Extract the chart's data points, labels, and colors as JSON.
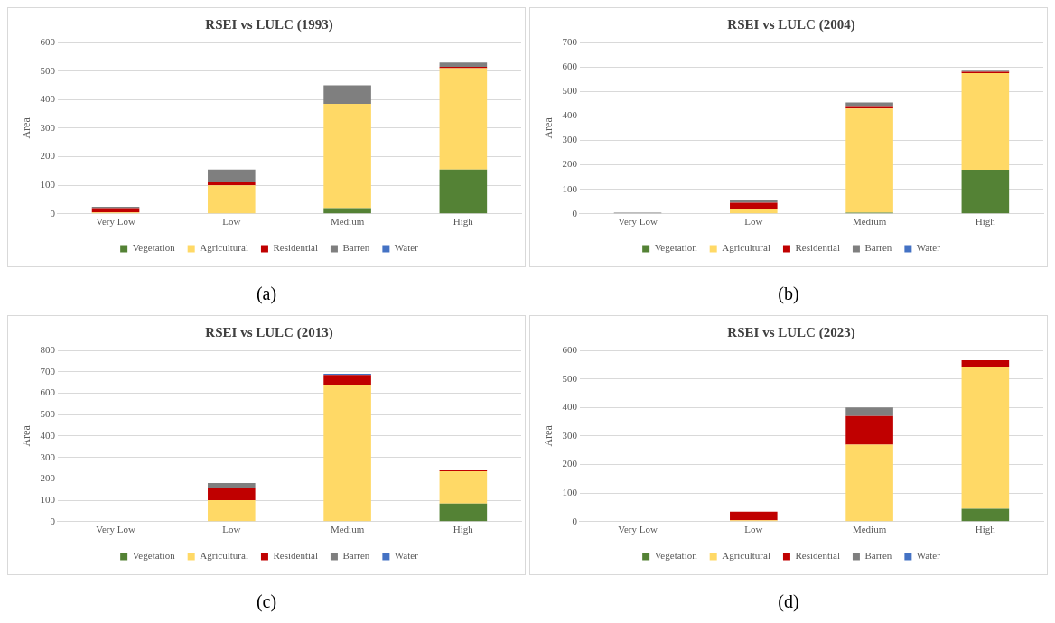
{
  "chart_data": [
    {
      "type": "bar",
      "title": "RSEI vs LULC (1993)",
      "ylabel": "Area",
      "categories": [
        "Very Low",
        "Low",
        "Medium",
        "High"
      ],
      "stacked": true,
      "ylim": [
        0,
        600
      ],
      "yticks": [
        0,
        100,
        200,
        300,
        400,
        500,
        600
      ],
      "grid": "y",
      "legend": "bottom",
      "annotations": [
        "(a)"
      ],
      "series": [
        {
          "name": "Vegetation",
          "color": "#548235",
          "values": [
            0,
            0,
            20,
            155
          ]
        },
        {
          "name": "Agricultural",
          "color": "#ffd966",
          "values": [
            5,
            100,
            365,
            355
          ]
        },
        {
          "name": "Residential",
          "color": "#c00000",
          "values": [
            15,
            10,
            0,
            5
          ]
        },
        {
          "name": "Barren",
          "color": "#7f7f7f",
          "values": [
            5,
            45,
            65,
            15
          ]
        },
        {
          "name": "Water",
          "color": "#4472c4",
          "values": [
            0,
            0,
            0,
            0
          ]
        }
      ]
    },
    {
      "type": "bar",
      "title": "RSEI vs LULC (2004)",
      "ylabel": "Area",
      "categories": [
        "Very Low",
        "Low",
        "Medium",
        "High"
      ],
      "stacked": true,
      "ylim": [
        0,
        700
      ],
      "yticks": [
        0,
        100,
        200,
        300,
        400,
        500,
        600,
        700
      ],
      "grid": "y",
      "legend": "bottom",
      "annotations": [
        "(b)"
      ],
      "series": [
        {
          "name": "Vegetation",
          "color": "#548235",
          "values": [
            0,
            0,
            5,
            180
          ]
        },
        {
          "name": "Agricultural",
          "color": "#ffd966",
          "values": [
            0,
            20,
            425,
            395
          ]
        },
        {
          "name": "Residential",
          "color": "#c00000",
          "values": [
            0,
            25,
            10,
            5
          ]
        },
        {
          "name": "Barren",
          "color": "#7f7f7f",
          "values": [
            5,
            10,
            15,
            5
          ]
        },
        {
          "name": "Water",
          "color": "#4472c4",
          "values": [
            0,
            0,
            0,
            0
          ]
        }
      ]
    },
    {
      "type": "bar",
      "title": "RSEI vs LULC (2013)",
      "ylabel": "Area",
      "categories": [
        "Very Low",
        "Low",
        "Medium",
        "High"
      ],
      "stacked": true,
      "ylim": [
        0,
        800
      ],
      "yticks": [
        0,
        100,
        200,
        300,
        400,
        500,
        600,
        700,
        800
      ],
      "grid": "y",
      "legend": "bottom",
      "annotations": [
        "(c)"
      ],
      "series": [
        {
          "name": "Vegetation",
          "color": "#548235",
          "values": [
            0,
            0,
            null,
            85
          ]
        },
        {
          "name": "Agricultural",
          "color": "#ffd966",
          "values": [
            0,
            100,
            640,
            150
          ]
        },
        {
          "name": "Residential",
          "color": "#c00000",
          "values": [
            null,
            55,
            45,
            5
          ]
        },
        {
          "name": "Barren",
          "color": "#7f7f7f",
          "values": [
            0,
            25,
            0,
            0
          ]
        },
        {
          "name": "Water",
          "color": "#4472c4",
          "values": [
            0,
            0,
            5,
            0
          ]
        }
      ]
    },
    {
      "type": "bar",
      "title": "RSEI vs LULC (2023)",
      "ylabel": "Area",
      "categories": [
        "Very Low",
        "Low",
        "Medium",
        "High"
      ],
      "stacked": true,
      "ylim": [
        0,
        600
      ],
      "yticks": [
        0,
        100,
        200,
        300,
        400,
        500,
        600
      ],
      "grid": "y",
      "legend": "bottom",
      "annotations": [
        "(d)"
      ],
      "series": [
        {
          "name": "Vegetation",
          "color": "#548235",
          "values": [
            0,
            0,
            0,
            45
          ]
        },
        {
          "name": "Agricultural",
          "color": "#ffd966",
          "values": [
            0,
            5,
            270,
            495
          ]
        },
        {
          "name": "Residential",
          "color": "#c00000",
          "values": [
            0,
            30,
            100,
            25
          ]
        },
        {
          "name": "Barren",
          "color": "#7f7f7f",
          "values": [
            0,
            0,
            30,
            0
          ]
        },
        {
          "name": "Water",
          "color": "#4472c4",
          "values": [
            0,
            0,
            0,
            0
          ]
        }
      ]
    }
  ]
}
